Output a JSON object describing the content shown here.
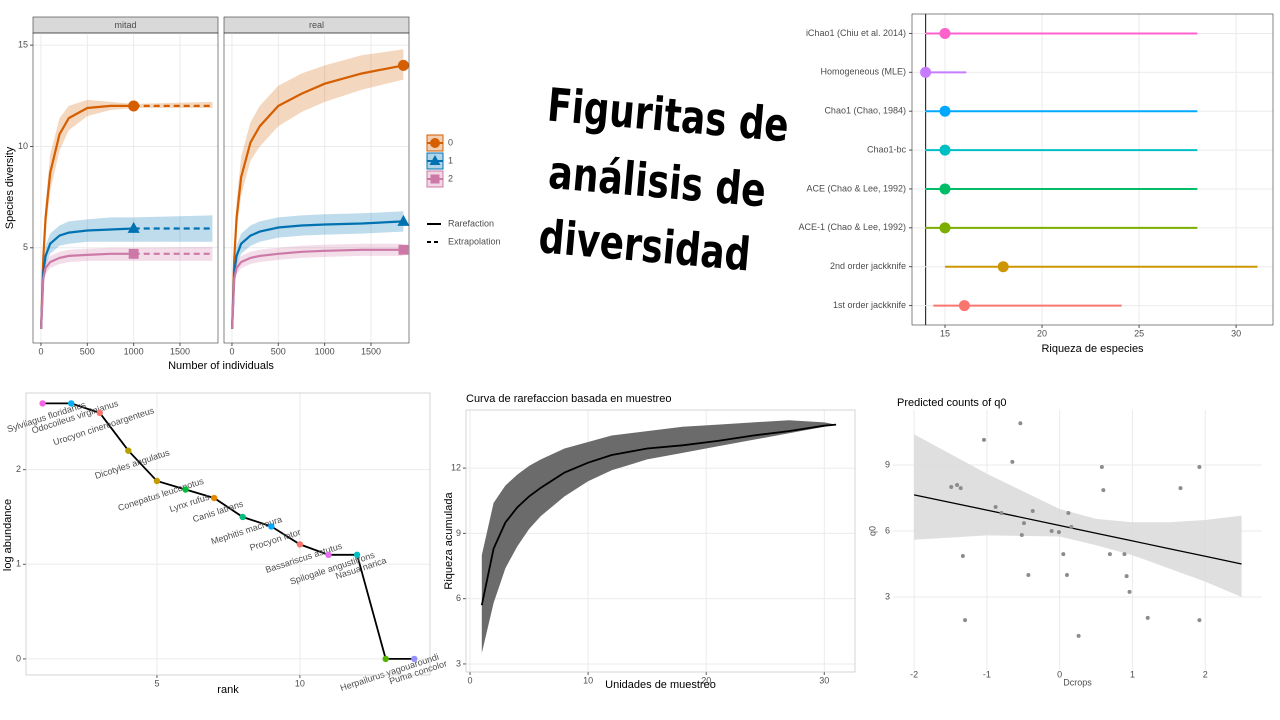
{
  "title": [
    "Figuritas de",
    "análisis de",
    "diversidad"
  ],
  "chart_data": [
    {
      "type": "facet_line",
      "x_label": "Number of individuals",
      "y_label": "Species diversity",
      "facets": [
        "mitad",
        "real"
      ],
      "xlim": [
        -86,
        1910
      ],
      "ylim": [
        0.3,
        15.6
      ],
      "xticks": [
        0,
        500,
        1000,
        1500
      ],
      "yticks": [
        5,
        10,
        15
      ],
      "linetypes": [
        "Rarefaction",
        "Extrapolation"
      ],
      "series": [
        {
          "name": "0",
          "color": "#D55E00",
          "marker": "circle",
          "panels": [
            {
              "x": [
                1,
                25,
                50,
                100,
                200,
                300,
                500,
                750,
                1000
              ],
              "values": [
                1,
                4.5,
                6.5,
                8.7,
                10.6,
                11.4,
                11.9,
                12.0,
                12.0
              ],
              "lower": [
                1,
                4,
                5.8,
                7.8,
                9.8,
                10.8,
                11.5,
                11.8,
                11.9
              ],
              "upper": [
                1,
                5,
                7.2,
                9.6,
                11.4,
                12,
                12.3,
                12.2,
                12.1
              ],
              "extrapolation": {
                "x": [
                  1000,
                  1850
                ],
                "values": [
                  12,
                  12
                ],
                "lower": [
                  11.9,
                  11.9
                ],
                "upper": [
                  12.1,
                  12.2
                ]
              }
            },
            {
              "x": [
                1,
                25,
                50,
                100,
                200,
                300,
                500,
                750,
                1000,
                1400,
                1850
              ],
              "values": [
                1,
                4.5,
                6.5,
                8.5,
                10.2,
                11.0,
                12.0,
                12.6,
                13.1,
                13.6,
                14.0
              ],
              "lower": [
                1,
                4,
                5.8,
                7.6,
                9.3,
                10.0,
                11.0,
                11.7,
                12.2,
                12.8,
                13.3
              ],
              "upper": [
                1,
                5,
                7.3,
                9.5,
                11.2,
                12.0,
                13.0,
                13.6,
                14.0,
                14.5,
                14.8
              ]
            }
          ]
        },
        {
          "name": "1",
          "color": "#0072B2",
          "marker": "triangle",
          "panels": [
            {
              "x": [
                1,
                25,
                50,
                100,
                200,
                300,
                500,
                750,
                1000
              ],
              "values": [
                1,
                3.8,
                4.6,
                5.2,
                5.6,
                5.75,
                5.85,
                5.9,
                5.95
              ],
              "lower": [
                1,
                3.4,
                4.1,
                4.7,
                5.1,
                5.2,
                5.3,
                5.3,
                5.3
              ],
              "upper": [
                1,
                4.2,
                5.1,
                5.7,
                6.1,
                6.3,
                6.4,
                6.5,
                6.5
              ],
              "extrapolation": {
                "x": [
                  1000,
                  1850
                ],
                "values": [
                  5.95,
                  5.95
                ],
                "lower": [
                  5.3,
                  5.3
                ],
                "upper": [
                  6.5,
                  6.6
                ]
              }
            },
            {
              "x": [
                1,
                25,
                50,
                100,
                200,
                300,
                500,
                750,
                1000,
                1400,
                1850
              ],
              "values": [
                1,
                3.8,
                4.6,
                5.2,
                5.6,
                5.8,
                6.0,
                6.1,
                6.15,
                6.2,
                6.3
              ],
              "lower": [
                1,
                3.4,
                4.1,
                4.7,
                5.1,
                5.3,
                5.5,
                5.6,
                5.65,
                5.7,
                5.8
              ],
              "upper": [
                1,
                4.2,
                5.1,
                5.7,
                6.1,
                6.3,
                6.5,
                6.6,
                6.65,
                6.7,
                6.8
              ]
            }
          ]
        },
        {
          "name": "2",
          "color": "#CC79A7",
          "marker": "square",
          "panels": [
            {
              "x": [
                1,
                25,
                50,
                100,
                200,
                300,
                500,
                750,
                1000
              ],
              "values": [
                1,
                3.5,
                4.0,
                4.3,
                4.5,
                4.6,
                4.65,
                4.7,
                4.7
              ],
              "lower": [
                1,
                3.2,
                3.7,
                4.0,
                4.2,
                4.3,
                4.35,
                4.35,
                4.35
              ],
              "upper": [
                1,
                3.8,
                4.3,
                4.6,
                4.8,
                4.9,
                4.95,
                5.0,
                5.0
              ],
              "extrapolation": {
                "x": [
                  1000,
                  1850
                ],
                "values": [
                  4.7,
                  4.7
                ],
                "lower": [
                  4.35,
                  4.35
                ],
                "upper": [
                  5.0,
                  5.05
                ]
              }
            },
            {
              "x": [
                1,
                25,
                50,
                100,
                200,
                300,
                500,
                750,
                1000,
                1400,
                1850
              ],
              "values": [
                1,
                3.5,
                4.0,
                4.3,
                4.5,
                4.6,
                4.7,
                4.8,
                4.85,
                4.9,
                4.9
              ],
              "lower": [
                1,
                3.2,
                3.7,
                4.0,
                4.2,
                4.3,
                4.4,
                4.5,
                4.55,
                4.6,
                4.6
              ],
              "upper": [
                1,
                3.8,
                4.3,
                4.6,
                4.8,
                4.9,
                5.0,
                5.1,
                5.15,
                5.2,
                5.2
              ]
            }
          ]
        }
      ]
    },
    {
      "type": "pointrange",
      "x_label": "Riqueza de especies",
      "xlim": [
        13.3,
        31.9
      ],
      "xticks": [
        15,
        20,
        25,
        30
      ],
      "vline": 14,
      "categories": [
        "iChao1 (Chiu et al. 2014)",
        "Homogeneous (MLE)",
        "Chao1 (Chao, 1984)",
        "Chao1-bc",
        "ACE (Chao & Lee, 1992)",
        "ACE-1 (Chao & Lee, 1992)",
        "2nd order jackknife",
        "1st order jackknife"
      ],
      "values": [
        15,
        14,
        15,
        15,
        15,
        15,
        18,
        16
      ],
      "lower": [
        14,
        14,
        14,
        14,
        14,
        14,
        15,
        14.4
      ],
      "upper": [
        28,
        16.1,
        28,
        28,
        28,
        28,
        31.1,
        24.1
      ],
      "colors": [
        "#FF61CC",
        "#C77CFF",
        "#00A9FF",
        "#00BFC4",
        "#00BE67",
        "#7CAE00",
        "#CD9600",
        "#F8766D"
      ]
    },
    {
      "type": "rank_abundance",
      "x_label": "rank",
      "y_label": "log abundance",
      "xlim": [
        0.42,
        14.55
      ],
      "ylim": [
        -0.17,
        2.81
      ],
      "xticks": [
        5,
        10
      ],
      "yticks": [
        0,
        1,
        2
      ],
      "x": [
        1,
        2,
        3,
        4,
        5,
        6,
        7,
        8,
        9,
        10,
        11,
        12,
        13,
        14
      ],
      "values": [
        2.7,
        2.7,
        2.6,
        2.2,
        1.88,
        1.79,
        1.7,
        1.5,
        1.4,
        1.21,
        1.1,
        1.1,
        0,
        0
      ],
      "labels": [
        "Sylvilagus floridanus",
        "Odocoileus virginianus",
        "Urocyon cinereoargenteus",
        "Dicotyles angulatus",
        "Conepatus leuconotus",
        "Lynx rufus",
        "Canis latrans",
        "Mephitis macroura",
        "Procyon lotor",
        "Bassariscus astutus",
        "Spilogale angustifrons",
        "Nasua narica",
        "Herpailurus yagouaroundi",
        "Puma concolor"
      ],
      "colors": [
        "#F564E3",
        "#00B0F6",
        "#F8766D",
        "#B79F00",
        "#C49A00",
        "#00BA38",
        "#E58700",
        "#00BF7D",
        "#00A9FF",
        "#F8766D",
        "#E76BF3",
        "#00BFC4",
        "#53B400",
        "#9590FF"
      ]
    },
    {
      "type": "band_line",
      "title": "Curva de rarefaccion basada en muestreo",
      "x_label": "Unidades de muestreo",
      "y_label": "Riqueza acumulada",
      "xlim": [
        -0.34,
        32.6
      ],
      "ylim": [
        2.63,
        14.67
      ],
      "xticks": [
        0,
        10,
        20,
        30
      ],
      "yticks": [
        3,
        6,
        9,
        12
      ],
      "x": [
        1,
        2,
        3,
        4,
        5,
        6,
        8,
        10,
        12,
        15,
        18,
        21,
        24,
        27,
        30,
        31
      ],
      "values": [
        5.7,
        8.3,
        9.5,
        10.2,
        10.7,
        11.1,
        11.8,
        12.25,
        12.6,
        12.9,
        13.05,
        13.25,
        13.5,
        13.7,
        13.95,
        14.0
      ],
      "lower": [
        3.5,
        5.8,
        7.4,
        8.4,
        9.2,
        9.8,
        10.7,
        11.4,
        11.9,
        12.4,
        12.7,
        13.0,
        13.3,
        13.6,
        13.9,
        14.0
      ],
      "upper": [
        8.0,
        10.4,
        11.2,
        11.7,
        12.1,
        12.4,
        12.9,
        13.2,
        13.5,
        13.7,
        13.9,
        14.0,
        14.1,
        14.2,
        14.1,
        14.0
      ]
    },
    {
      "type": "scatter_fit",
      "title": "Predicted counts of q0",
      "x_label": "Dcrops",
      "y_label": "q0",
      "xlim": [
        -2.29,
        2.78
      ],
      "ylim": [
        -0.32,
        11.5
      ],
      "xticks": [
        -2,
        -1,
        0,
        1,
        2
      ],
      "yticks": [
        3,
        6,
        9
      ],
      "x": [
        -1.04,
        -0.54,
        -0.65,
        0.58,
        -1.49,
        -1.41,
        -1.36,
        0.6,
        1.66,
        1.92,
        -0.88,
        -0.8,
        -0.37,
        0.12,
        -0.49,
        -0.11,
        -0.01,
        0.16,
        -0.52,
        -1.33,
        0.05,
        0.69,
        0.89,
        -0.43,
        0.1,
        0.92,
        0.96,
        -1.3,
        1.21,
        1.92,
        0.26
      ],
      "values": [
        10.14,
        10.9,
        9.14,
        8.91,
        8.0,
        8.09,
        7.95,
        7.86,
        7.95,
        8.91,
        7.09,
        6.82,
        6.91,
        6.82,
        6.36,
        6.0,
        5.95,
        6.18,
        5.82,
        4.86,
        4.95,
        4.95,
        4.95,
        4.0,
        4.0,
        3.95,
        3.23,
        1.95,
        2.05,
        1.95,
        1.23
      ],
      "fit": {
        "x": [
          -2,
          -1,
          0,
          0.5,
          1,
          1.5,
          2,
          2.5
        ],
        "values": [
          7.64,
          6.95,
          6.25,
          5.9,
          5.55,
          5.2,
          4.85,
          4.5
        ],
        "lower": [
          5.6,
          5.8,
          5.75,
          5.35,
          4.9,
          4.3,
          3.7,
          3.0
        ],
        "upper": [
          10.4,
          8.6,
          7.0,
          6.55,
          6.4,
          6.4,
          6.5,
          6.7
        ]
      }
    }
  ]
}
